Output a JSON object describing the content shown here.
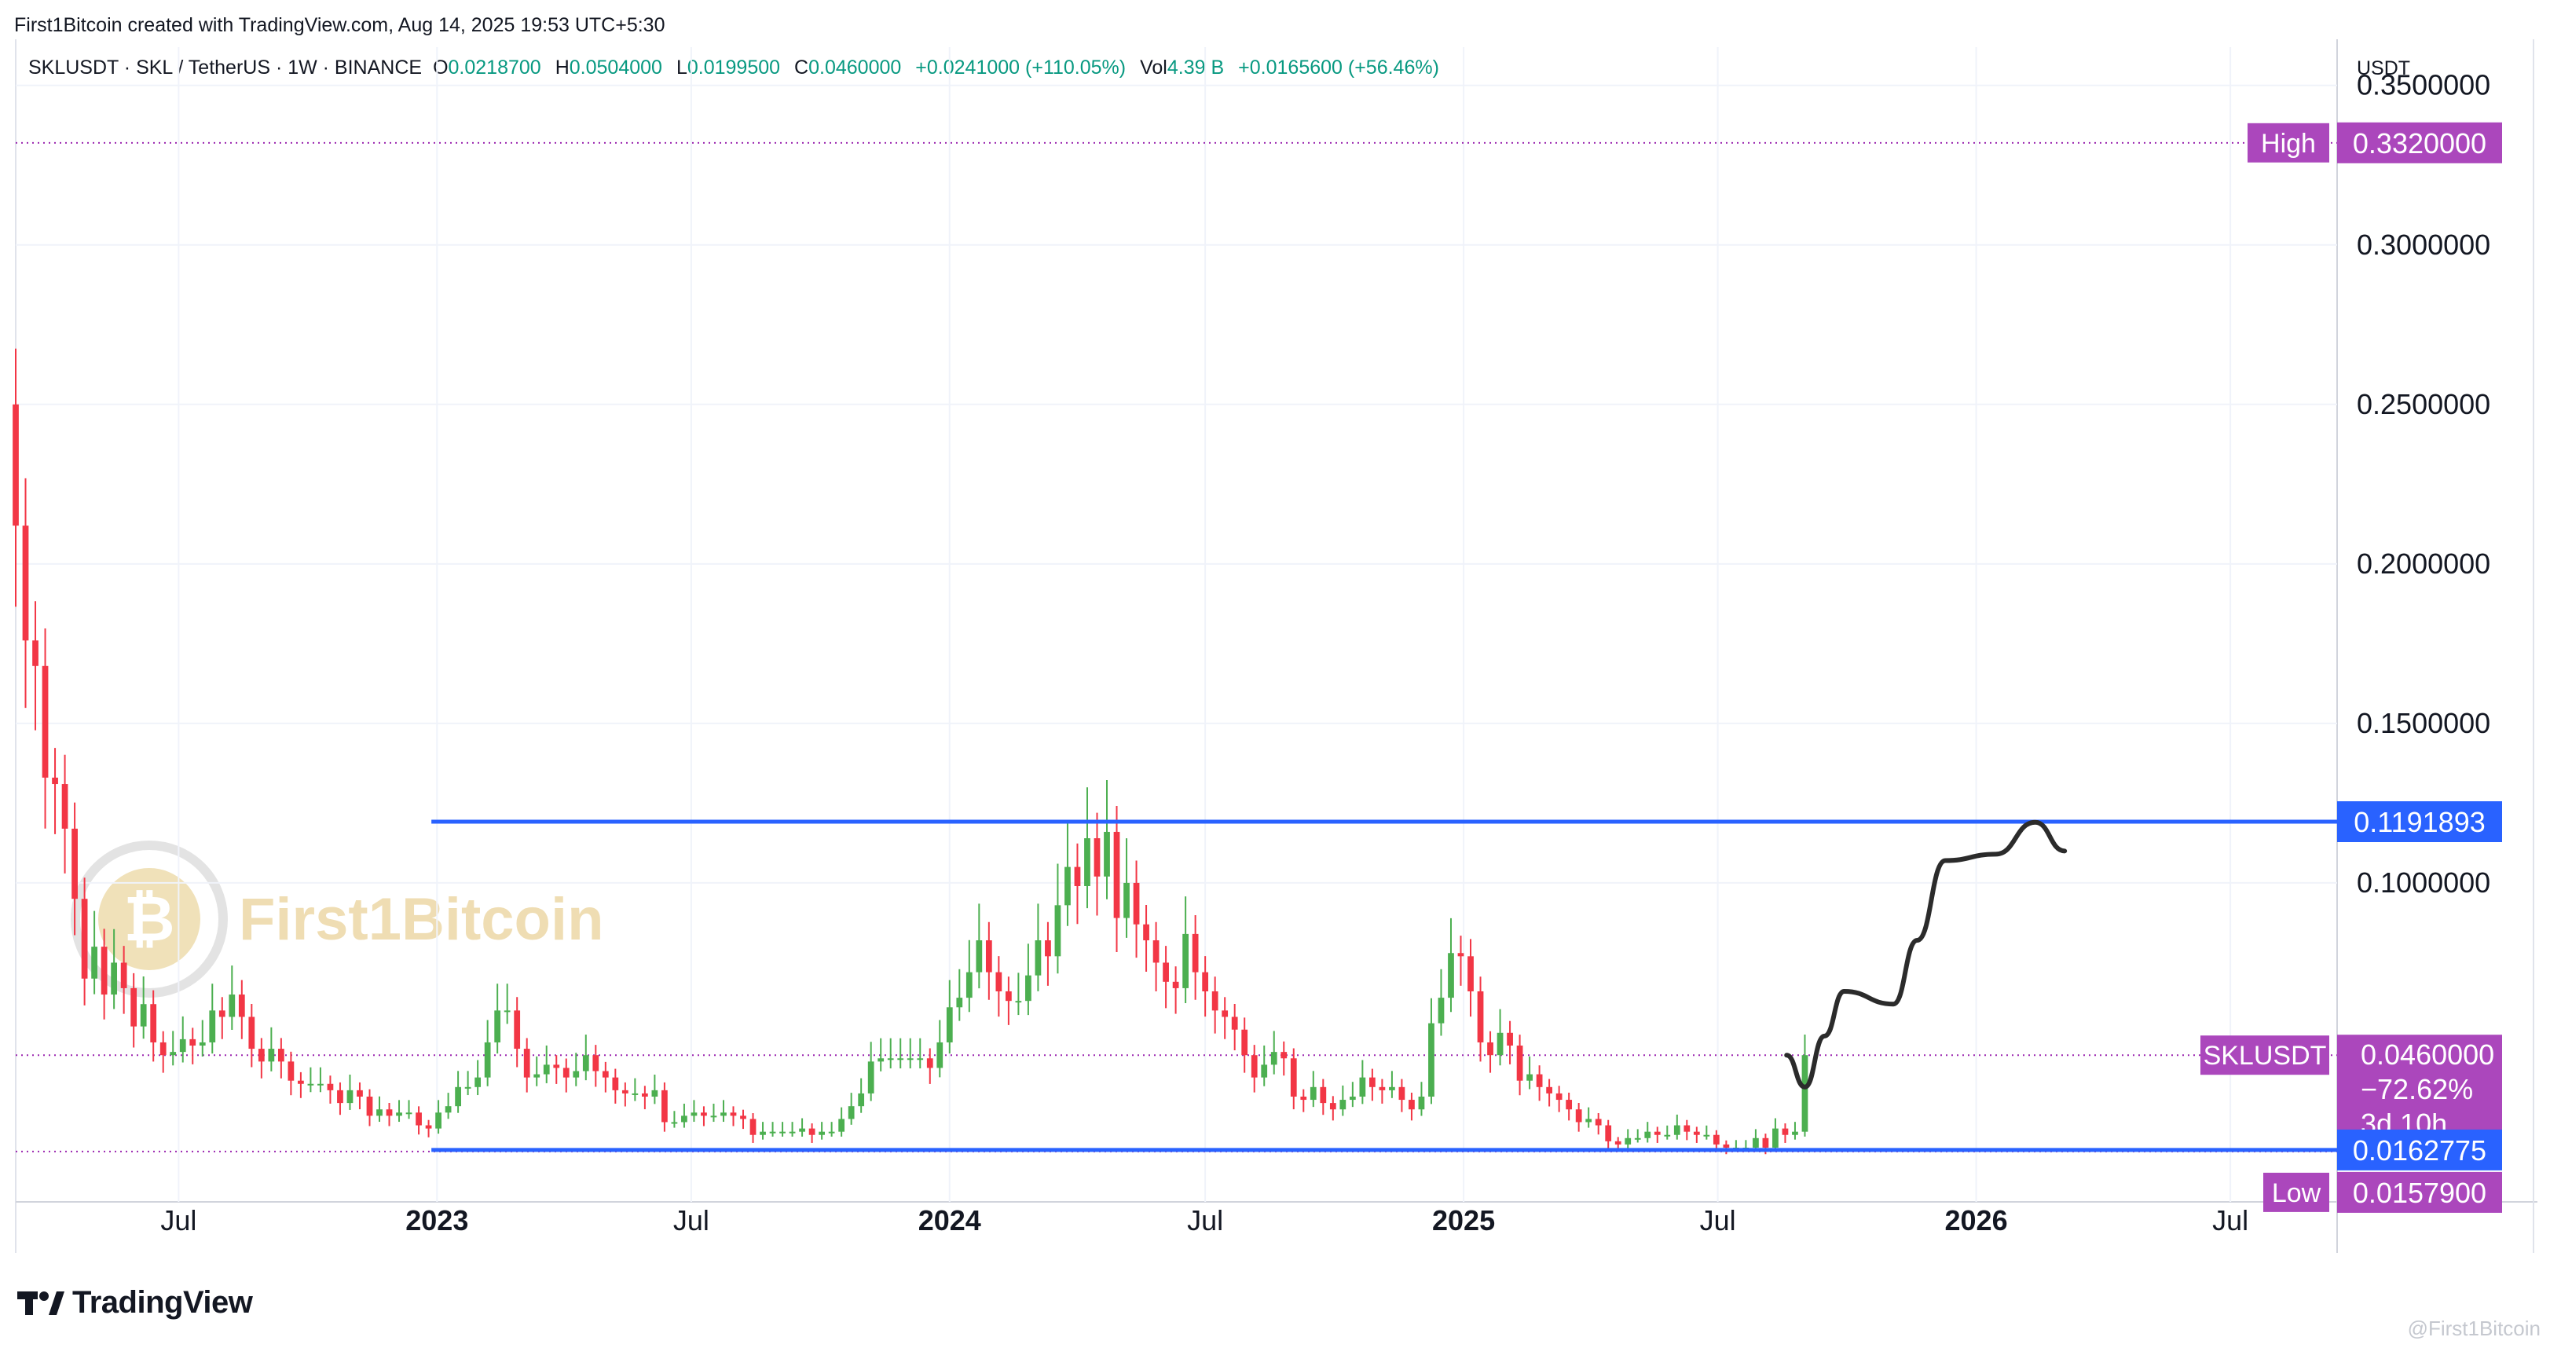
{
  "header": {
    "credit": "First1Bitcoin created with TradingView.com, Aug 14, 2025 19:53 UTC+5:30",
    "symbol_line": "SKLUSDT · SKL / TetherUS · 1W · BINANCE",
    "o_label": "O",
    "o_value": "0.0218700",
    "h_label": "H",
    "h_value": "0.0504000",
    "l_label": "L",
    "l_value": "0.0199500",
    "c_label": "C",
    "c_value": "0.0460000",
    "change": "+0.0241000 (+110.05%)",
    "vol_label": "Vol",
    "vol_value": "4.39 B",
    "vol_change": "+0.0165600 (+56.46%)"
  },
  "branding": {
    "tv_logo_text": "TradingView",
    "watermark_text": "First1Bitcoin",
    "bottom_watermark": "@First1Bitcoin"
  },
  "colors": {
    "up": "#4caf50",
    "down": "#f23645",
    "level_line": "#2962ff",
    "marker": "#9c27b0",
    "label_purple": "#ab47bc",
    "label_blue": "#2962ff",
    "drawing": "#2b2b2b",
    "grid": "#f0f3fa"
  },
  "chart_data": {
    "type": "candlestick",
    "symbol": "SKLUSDT",
    "timeframe": "1W",
    "y_axis_unit": "USDT",
    "ylim": [
      0.0,
      0.362
    ],
    "y_ticks": [
      0.35,
      0.3,
      0.25,
      0.2,
      0.15,
      0.1
    ],
    "y_tick_labels": [
      "0.3500000",
      "0.3000000",
      "0.2500000",
      "0.2000000",
      "0.1500000",
      "0.1000000"
    ],
    "x_range": [
      "2022-03-07",
      "2026-09-15"
    ],
    "x_ticks": [
      {
        "date": "2022-07-01",
        "label": "Jul",
        "bold": false
      },
      {
        "date": "2023-01-01",
        "label": "2023",
        "bold": true
      },
      {
        "date": "2023-07-01",
        "label": "Jul",
        "bold": false
      },
      {
        "date": "2024-01-01",
        "label": "2024",
        "bold": true
      },
      {
        "date": "2024-07-01",
        "label": "Jul",
        "bold": false
      },
      {
        "date": "2025-01-01",
        "label": "2025",
        "bold": true
      },
      {
        "date": "2025-07-01",
        "label": "Jul",
        "bold": false
      },
      {
        "date": "2026-01-01",
        "label": "2026",
        "bold": true
      },
      {
        "date": "2026-07-01",
        "label": "Jul",
        "bold": false
      }
    ],
    "markers": [
      {
        "label": "High",
        "value_label": "0.3320000",
        "value": 0.332
      },
      {
        "label": "SKLUSDT",
        "value_label": "0.0460000",
        "value": 0.046,
        "extra": [
          "−72.62%",
          "3d 10h"
        ]
      },
      {
        "label": "Low",
        "value_label": "0.0157900",
        "value": 0.01579
      }
    ],
    "levels": [
      {
        "value": 0.1191893,
        "label": "0.1191893",
        "from": "2022-12-28"
      },
      {
        "value": 0.0162775,
        "label": "0.0162775",
        "from": "2022-12-28"
      }
    ],
    "projection_path": [
      [
        "2025-08-19",
        0.046
      ],
      [
        "2025-09-01",
        0.036
      ],
      [
        "2025-09-15",
        0.052
      ],
      [
        "2025-09-29",
        0.066
      ],
      [
        "2025-11-03",
        0.062
      ],
      [
        "2025-11-20",
        0.082
      ],
      [
        "2025-12-10",
        0.107
      ],
      [
        "2026-01-15",
        0.109
      ],
      [
        "2026-02-12",
        0.119
      ],
      [
        "2026-03-05",
        0.11
      ]
    ],
    "weeks_start": "2022-03-07",
    "close": [
      0.212,
      0.176,
      0.168,
      0.133,
      0.131,
      0.117,
      0.095,
      0.07,
      0.08,
      0.065,
      0.075,
      0.067,
      0.055,
      0.062,
      0.05,
      0.046,
      0.047,
      0.051,
      0.049,
      0.05,
      0.06,
      0.058,
      0.065,
      0.058,
      0.048,
      0.044,
      0.048,
      0.044,
      0.038,
      0.037,
      0.037,
      0.037,
      0.035,
      0.031,
      0.035,
      0.033,
      0.027,
      0.029,
      0.027,
      0.028,
      0.028,
      0.024,
      0.023,
      0.028,
      0.03,
      0.036,
      0.036,
      0.039,
      0.05,
      0.06,
      0.06,
      0.048,
      0.039,
      0.04,
      0.043,
      0.042,
      0.039,
      0.041,
      0.046,
      0.041,
      0.039,
      0.035,
      0.034,
      0.034,
      0.033,
      0.035,
      0.025,
      0.025,
      0.027,
      0.028,
      0.027,
      0.027,
      0.028,
      0.027,
      0.026,
      0.021,
      0.022,
      0.022,
      0.022,
      0.022,
      0.023,
      0.021,
      0.022,
      0.022,
      0.026,
      0.03,
      0.034,
      0.044,
      0.045,
      0.045,
      0.045,
      0.045,
      0.045,
      0.042,
      0.05,
      0.061,
      0.064,
      0.072,
      0.082,
      0.072,
      0.066,
      0.063,
      0.063,
      0.071,
      0.082,
      0.077,
      0.093,
      0.105,
      0.099,
      0.114,
      0.102,
      0.116,
      0.089,
      0.1,
      0.087,
      0.082,
      0.075,
      0.069,
      0.067,
      0.084,
      0.072,
      0.066,
      0.06,
      0.058,
      0.054,
      0.046,
      0.039,
      0.043,
      0.047,
      0.045,
      0.033,
      0.032,
      0.036,
      0.031,
      0.029,
      0.032,
      0.033,
      0.039,
      0.036,
      0.035,
      0.036,
      0.032,
      0.029,
      0.033,
      0.056,
      0.064,
      0.078,
      0.077,
      0.066,
      0.05,
      0.046,
      0.053,
      0.049,
      0.038,
      0.04,
      0.036,
      0.034,
      0.032,
      0.029,
      0.025,
      0.026,
      0.024,
      0.019,
      0.018,
      0.02,
      0.02,
      0.022,
      0.021,
      0.021,
      0.024,
      0.022,
      0.021,
      0.021,
      0.018,
      0.017,
      0.017,
      0.017,
      0.02,
      0.017,
      0.023,
      0.021,
      0.022,
      0.046
    ]
  }
}
